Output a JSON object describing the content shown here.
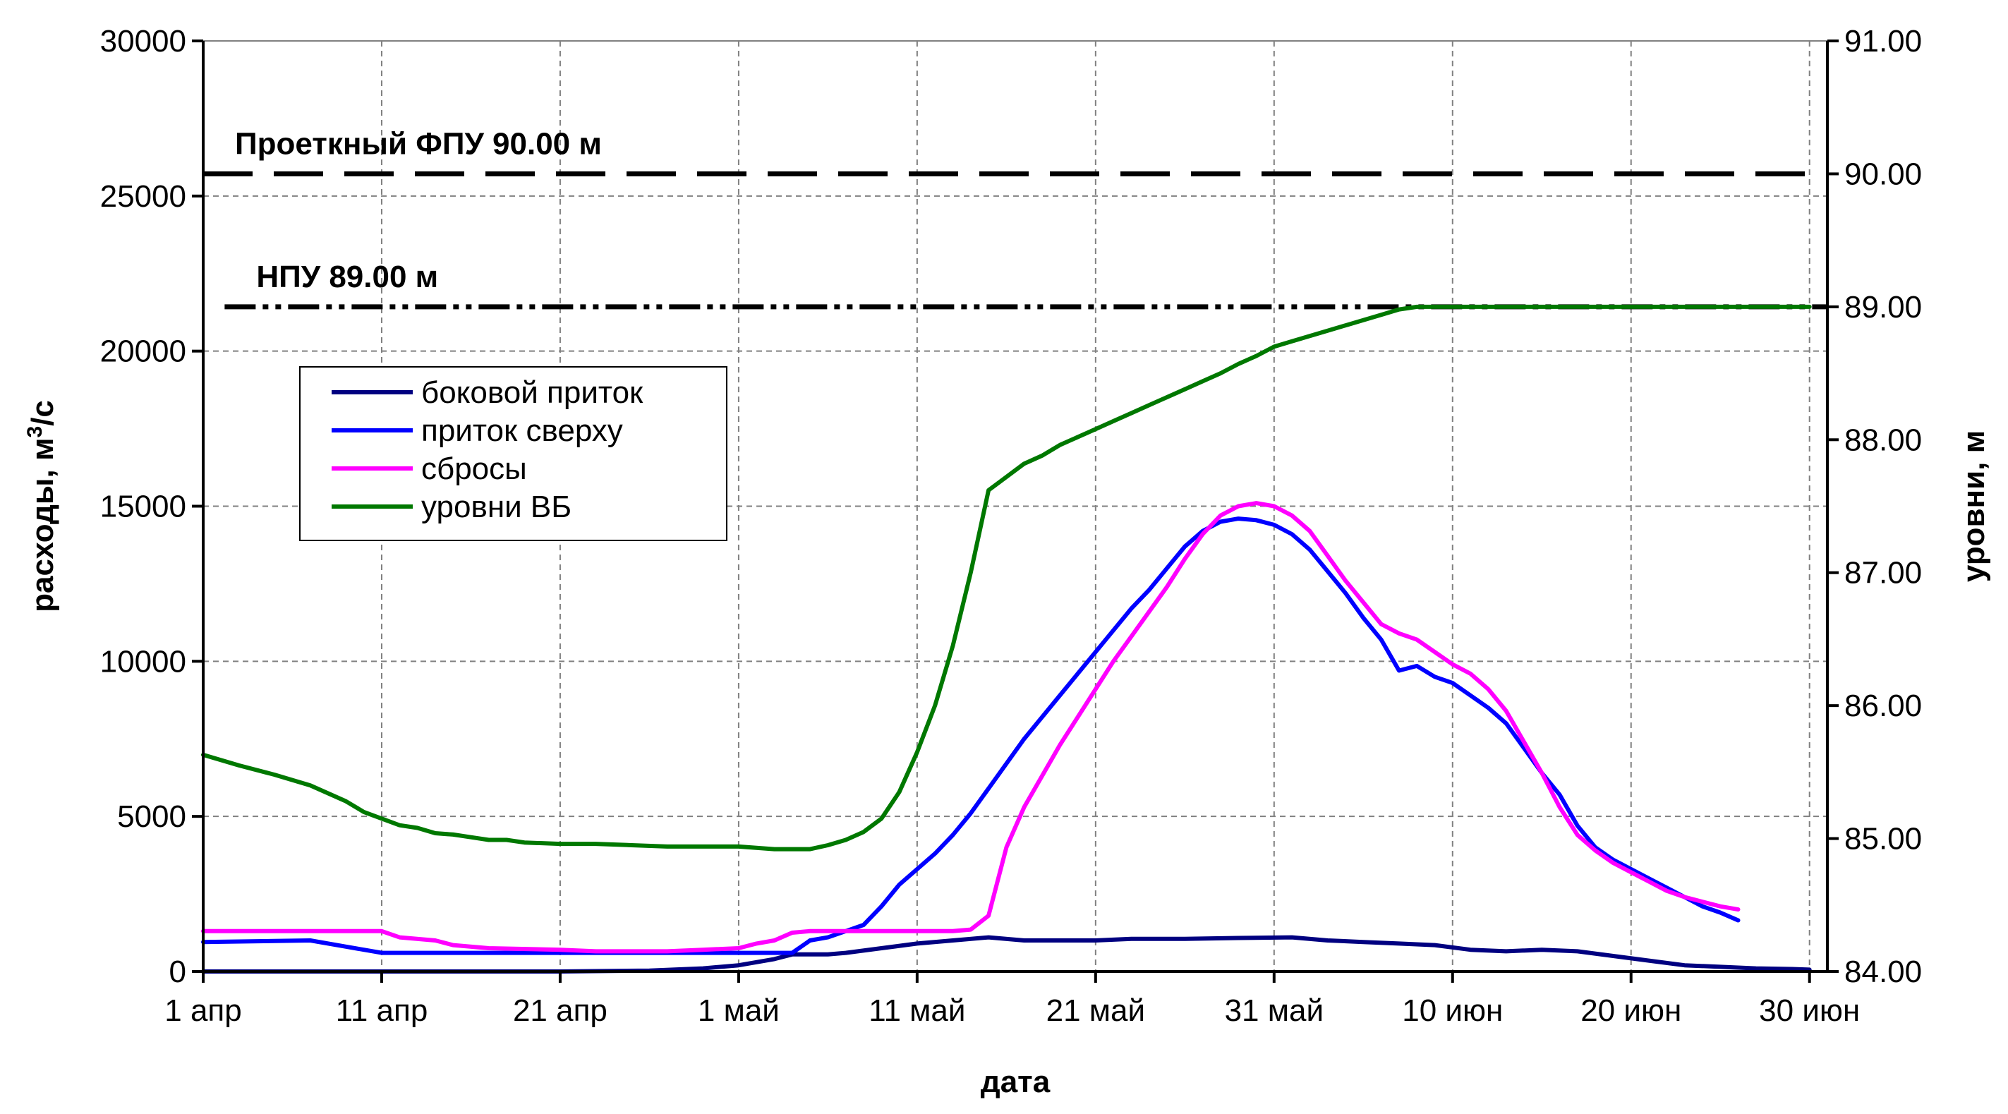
{
  "chart_data": {
    "type": "line",
    "xlabel": "дата",
    "ylabel": "расходы, м³/с",
    "ylabel_parts": {
      "before": "расходы, м",
      "sup": "3",
      "after": "/с"
    },
    "y2label": "уровни, м",
    "ylim": [
      0,
      30000
    ],
    "y2lim": [
      84.0,
      91.0
    ],
    "xlim_days": [
      0,
      91
    ],
    "grid": true,
    "legend_position": "left, mid-upper",
    "x_ticks": [
      {
        "day": 0,
        "label": "1 апр"
      },
      {
        "day": 10,
        "label": "11 апр"
      },
      {
        "day": 20,
        "label": "21 апр"
      },
      {
        "day": 30,
        "label": "1 май"
      },
      {
        "day": 40,
        "label": "11 май"
      },
      {
        "day": 50,
        "label": "21 май"
      },
      {
        "day": 60,
        "label": "31 май"
      },
      {
        "day": 70,
        "label": "10 июн"
      },
      {
        "day": 80,
        "label": "20 июн"
      },
      {
        "day": 90,
        "label": "30 июн"
      }
    ],
    "y_ticks": [
      {
        "v": 0,
        "label": "0"
      },
      {
        "v": 5000,
        "label": "5000"
      },
      {
        "v": 10000,
        "label": "10000"
      },
      {
        "v": 15000,
        "label": "15000"
      },
      {
        "v": 20000,
        "label": "20000"
      },
      {
        "v": 25000,
        "label": "25000"
      },
      {
        "v": 30000,
        "label": "30000"
      }
    ],
    "y2_ticks": [
      {
        "v": 84.0,
        "label": "84.00"
      },
      {
        "v": 85.0,
        "label": "85.00"
      },
      {
        "v": 86.0,
        "label": "86.00"
      },
      {
        "v": 87.0,
        "label": "87.00"
      },
      {
        "v": 88.0,
        "label": "88.00"
      },
      {
        "v": 89.0,
        "label": "89.00"
      },
      {
        "v": 90.0,
        "label": "90.00"
      },
      {
        "v": 91.0,
        "label": "91.00"
      }
    ],
    "reference_lines": [
      {
        "name": "fpu",
        "label": "Проеткный ФПУ 90.00 м",
        "value": 90.0,
        "axis": "right",
        "style": "long-dash",
        "color": "#000000",
        "day_start": 0,
        "day_end": 91
      },
      {
        "name": "npu",
        "label": "НПУ 89.00 м",
        "value": 89.0,
        "axis": "right",
        "style": "dash-dot-dot",
        "color": "#000000",
        "day_start": 1.2,
        "day_end": 91
      }
    ],
    "series": [
      {
        "name": "боковой приток",
        "axis": "left",
        "color": "#000080",
        "points": [
          [
            0,
            0
          ],
          [
            10,
            0
          ],
          [
            20,
            0
          ],
          [
            25,
            30
          ],
          [
            28,
            100
          ],
          [
            30,
            200
          ],
          [
            32,
            400
          ],
          [
            33,
            550
          ],
          [
            35,
            550
          ],
          [
            36,
            600
          ],
          [
            38,
            750
          ],
          [
            40,
            900
          ],
          [
            42,
            1000
          ],
          [
            44,
            1100
          ],
          [
            46,
            1000
          ],
          [
            48,
            1000
          ],
          [
            50,
            1000
          ],
          [
            52,
            1050
          ],
          [
            55,
            1050
          ],
          [
            58,
            1080
          ],
          [
            61,
            1100
          ],
          [
            63,
            1000
          ],
          [
            65,
            950
          ],
          [
            67,
            900
          ],
          [
            69,
            850
          ],
          [
            71,
            700
          ],
          [
            73,
            650
          ],
          [
            75,
            700
          ],
          [
            77,
            650
          ],
          [
            79,
            500
          ],
          [
            81,
            350
          ],
          [
            83,
            200
          ],
          [
            85,
            150
          ],
          [
            87,
            100
          ],
          [
            89,
            80
          ],
          [
            90,
            60
          ]
        ]
      },
      {
        "name": "приток сверху",
        "axis": "left",
        "color": "#0000ff",
        "points": [
          [
            0,
            950
          ],
          [
            6,
            1000
          ],
          [
            8,
            800
          ],
          [
            9,
            700
          ],
          [
            10,
            600
          ],
          [
            20,
            600
          ],
          [
            30,
            600
          ],
          [
            31,
            600
          ],
          [
            32,
            600
          ],
          [
            33,
            600
          ],
          [
            34,
            1000
          ],
          [
            35,
            1100
          ],
          [
            36,
            1300
          ],
          [
            37,
            1500
          ],
          [
            38,
            2100
          ],
          [
            39,
            2800
          ],
          [
            40,
            3300
          ],
          [
            41,
            3800
          ],
          [
            42,
            4400
          ],
          [
            43,
            5100
          ],
          [
            44,
            5900
          ],
          [
            45,
            6700
          ],
          [
            46,
            7500
          ],
          [
            47,
            8200
          ],
          [
            48,
            8900
          ],
          [
            49,
            9600
          ],
          [
            50,
            10300
          ],
          [
            51,
            11000
          ],
          [
            52,
            11700
          ],
          [
            53,
            12300
          ],
          [
            54,
            13000
          ],
          [
            55,
            13700
          ],
          [
            56,
            14200
          ],
          [
            57,
            14500
          ],
          [
            58,
            14600
          ],
          [
            59,
            14550
          ],
          [
            60,
            14400
          ],
          [
            61,
            14100
          ],
          [
            62,
            13600
          ],
          [
            63,
            12900
          ],
          [
            64,
            12200
          ],
          [
            65,
            11400
          ],
          [
            66,
            10700
          ],
          [
            67,
            9700
          ],
          [
            68,
            9850
          ],
          [
            69,
            9500
          ],
          [
            70,
            9300
          ],
          [
            71,
            8900
          ],
          [
            72,
            8500
          ],
          [
            73,
            8000
          ],
          [
            74,
            7200
          ],
          [
            75,
            6400
          ],
          [
            76,
            5700
          ],
          [
            77,
            4700
          ],
          [
            78,
            4000
          ],
          [
            79,
            3600
          ],
          [
            80,
            3300
          ],
          [
            81,
            3000
          ],
          [
            82,
            2700
          ],
          [
            83,
            2400
          ],
          [
            84,
            2100
          ],
          [
            85,
            1900
          ],
          [
            86,
            1650
          ]
        ]
      },
      {
        "name": "сбросы",
        "axis": "left",
        "color": "#ff00ff",
        "points": [
          [
            0,
            1300
          ],
          [
            10,
            1300
          ],
          [
            11,
            1100
          ],
          [
            13,
            1000
          ],
          [
            14,
            850
          ],
          [
            16,
            750
          ],
          [
            20,
            700
          ],
          [
            22,
            650
          ],
          [
            26,
            650
          ],
          [
            28,
            700
          ],
          [
            30,
            750
          ],
          [
            31,
            900
          ],
          [
            32,
            1000
          ],
          [
            33,
            1250
          ],
          [
            34,
            1300
          ],
          [
            36,
            1300
          ],
          [
            38,
            1300
          ],
          [
            40,
            1300
          ],
          [
            42,
            1300
          ],
          [
            43,
            1350
          ],
          [
            44,
            1800
          ],
          [
            45,
            4000
          ],
          [
            46,
            5300
          ],
          [
            47,
            6300
          ],
          [
            48,
            7300
          ],
          [
            49,
            8200
          ],
          [
            50,
            9100
          ],
          [
            51,
            10000
          ],
          [
            52,
            10800
          ],
          [
            53,
            11600
          ],
          [
            54,
            12400
          ],
          [
            55,
            13300
          ],
          [
            56,
            14100
          ],
          [
            57,
            14700
          ],
          [
            58,
            15000
          ],
          [
            59,
            15100
          ],
          [
            60,
            15000
          ],
          [
            61,
            14700
          ],
          [
            62,
            14200
          ],
          [
            63,
            13400
          ],
          [
            64,
            12600
          ],
          [
            65,
            11900
          ],
          [
            66,
            11200
          ],
          [
            67,
            10900
          ],
          [
            68,
            10700
          ],
          [
            69,
            10300
          ],
          [
            70,
            9900
          ],
          [
            71,
            9600
          ],
          [
            72,
            9100
          ],
          [
            73,
            8400
          ],
          [
            74,
            7400
          ],
          [
            75,
            6400
          ],
          [
            76,
            5300
          ],
          [
            77,
            4400
          ],
          [
            78,
            3900
          ],
          [
            79,
            3500
          ],
          [
            80,
            3200
          ],
          [
            81,
            2900
          ],
          [
            82,
            2600
          ],
          [
            83,
            2400
          ],
          [
            84,
            2250
          ],
          [
            85,
            2100
          ],
          [
            86,
            2000
          ]
        ]
      },
      {
        "name": "уровни ВБ",
        "axis": "right",
        "color": "#007800",
        "points": [
          [
            0,
            85.63
          ],
          [
            2,
            85.55
          ],
          [
            4,
            85.48
          ],
          [
            6,
            85.4
          ],
          [
            7,
            85.34
          ],
          [
            8,
            85.28
          ],
          [
            9,
            85.2
          ],
          [
            10,
            85.15
          ],
          [
            11,
            85.1
          ],
          [
            12,
            85.08
          ],
          [
            13,
            85.04
          ],
          [
            14,
            85.03
          ],
          [
            15,
            85.01
          ],
          [
            16,
            84.99
          ],
          [
            17,
            84.99
          ],
          [
            18,
            84.97
          ],
          [
            20,
            84.96
          ],
          [
            22,
            84.96
          ],
          [
            24,
            84.95
          ],
          [
            26,
            84.94
          ],
          [
            28,
            84.94
          ],
          [
            30,
            84.94
          ],
          [
            32,
            84.92
          ],
          [
            33,
            84.92
          ],
          [
            34,
            84.92
          ],
          [
            35,
            84.95
          ],
          [
            36,
            84.99
          ],
          [
            37,
            85.05
          ],
          [
            38,
            85.15
          ],
          [
            39,
            85.35
          ],
          [
            40,
            85.65
          ],
          [
            41,
            86.0
          ],
          [
            42,
            86.45
          ],
          [
            43,
            87.0
          ],
          [
            44,
            87.62
          ],
          [
            45,
            87.72
          ],
          [
            46,
            87.82
          ],
          [
            47,
            87.88
          ],
          [
            48,
            87.96
          ],
          [
            49,
            88.02
          ],
          [
            50,
            88.08
          ],
          [
            51,
            88.14
          ],
          [
            52,
            88.2
          ],
          [
            53,
            88.26
          ],
          [
            54,
            88.32
          ],
          [
            55,
            88.38
          ],
          [
            56,
            88.44
          ],
          [
            57,
            88.5
          ],
          [
            58,
            88.57
          ],
          [
            59,
            88.63
          ],
          [
            60,
            88.7
          ],
          [
            61,
            88.74
          ],
          [
            62,
            88.78
          ],
          [
            63,
            88.82
          ],
          [
            64,
            88.86
          ],
          [
            65,
            88.9
          ],
          [
            66,
            88.94
          ],
          [
            67,
            88.98
          ],
          [
            68,
            89.0
          ],
          [
            70,
            89.0
          ],
          [
            80,
            89.0
          ],
          [
            88,
            89.0
          ],
          [
            90,
            89.0
          ]
        ]
      }
    ]
  }
}
